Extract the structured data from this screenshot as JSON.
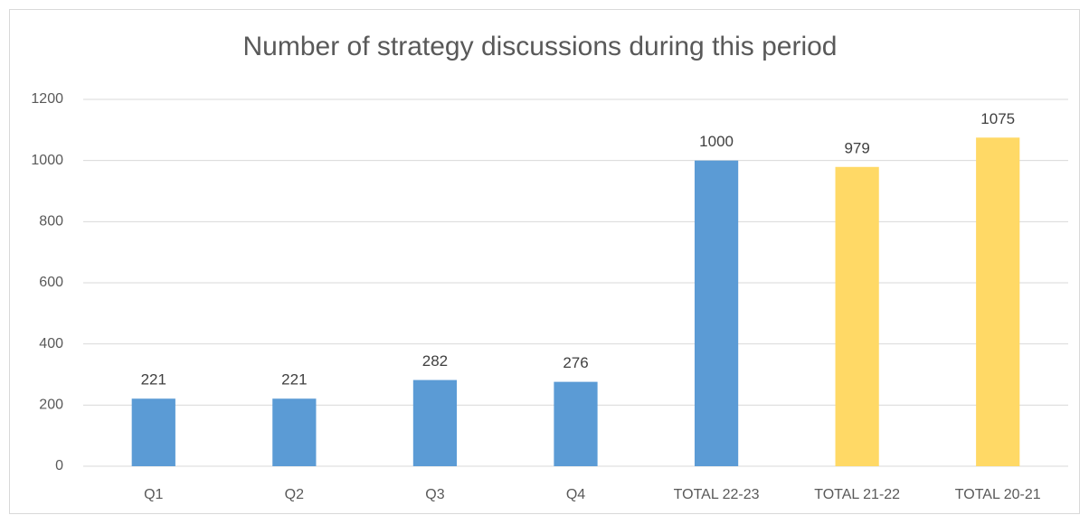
{
  "chart_data": {
    "type": "bar",
    "title": "Number of strategy discussions during this period",
    "categories": [
      "Q1",
      "Q2",
      "Q3",
      "Q4",
      "TOTAL 22-23",
      "TOTAL 21-22",
      "TOTAL 20-21"
    ],
    "values": [
      221,
      221,
      282,
      276,
      1000,
      979,
      1075
    ],
    "colors": [
      "#5b9bd5",
      "#5b9bd5",
      "#5b9bd5",
      "#5b9bd5",
      "#5b9bd5",
      "#ffd966",
      "#ffd966"
    ],
    "ylim": [
      0,
      1200
    ],
    "yticks": [
      0,
      200,
      400,
      600,
      800,
      1000,
      1200
    ],
    "grid": true
  }
}
